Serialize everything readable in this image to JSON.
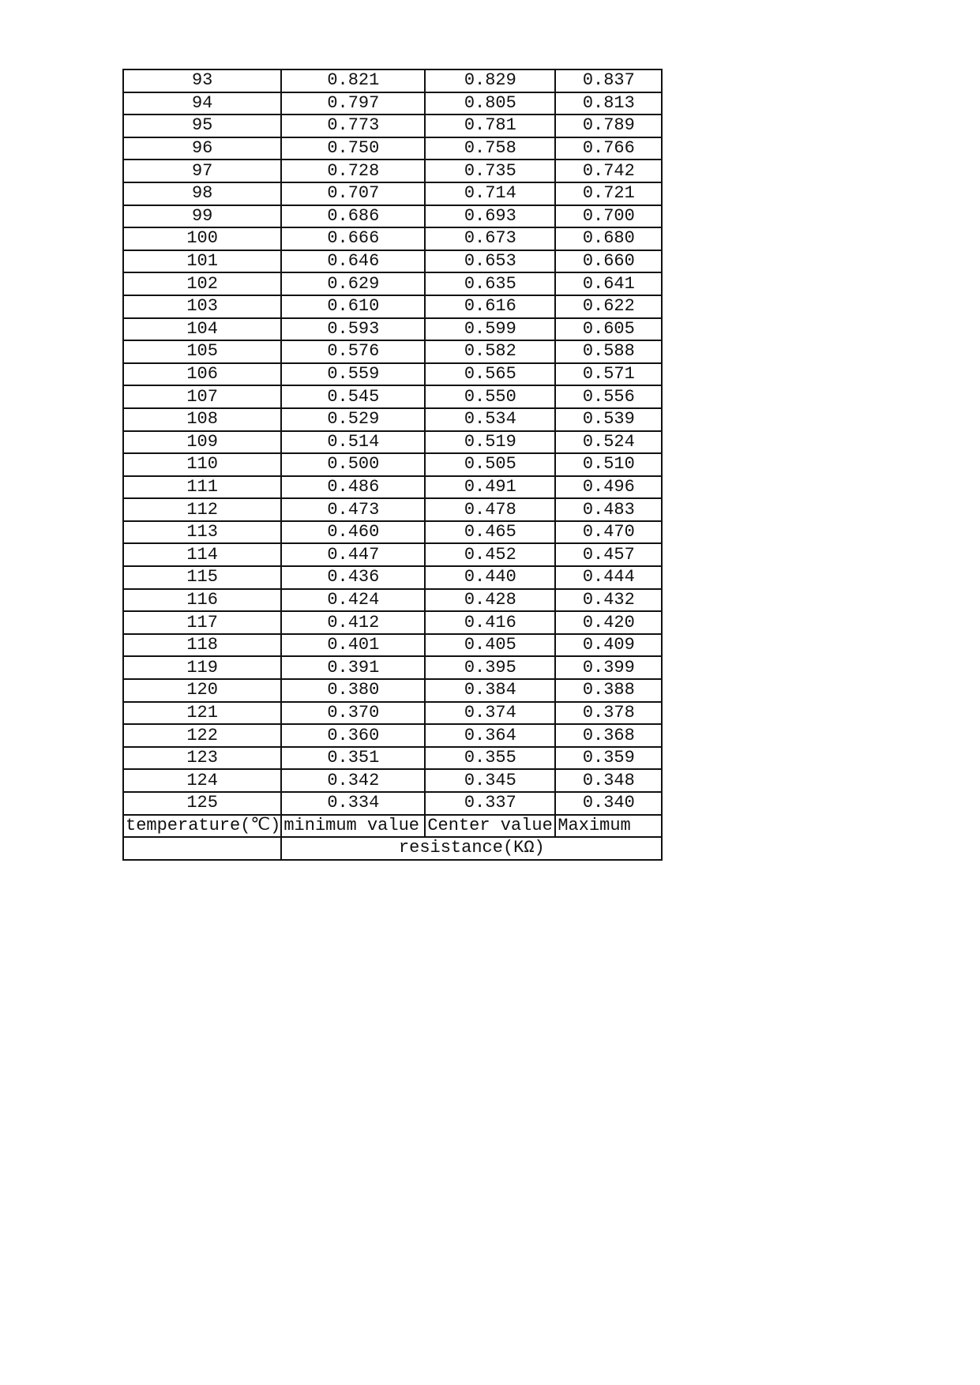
{
  "table": {
    "rows": [
      [
        "93",
        "0.821",
        "0.829",
        "0.837"
      ],
      [
        "94",
        "0.797",
        "0.805",
        "0.813"
      ],
      [
        "95",
        "0.773",
        "0.781",
        "0.789"
      ],
      [
        "96",
        "0.750",
        "0.758",
        "0.766"
      ],
      [
        "97",
        "0.728",
        "0.735",
        "0.742"
      ],
      [
        "98",
        "0.707",
        "0.714",
        "0.721"
      ],
      [
        "99",
        "0.686",
        "0.693",
        "0.700"
      ],
      [
        "100",
        "0.666",
        "0.673",
        "0.680"
      ],
      [
        "101",
        "0.646",
        "0.653",
        "0.660"
      ],
      [
        "102",
        "0.629",
        "0.635",
        "0.641"
      ],
      [
        "103",
        "0.610",
        "0.616",
        "0.622"
      ],
      [
        "104",
        "0.593",
        "0.599",
        "0.605"
      ],
      [
        "105",
        "0.576",
        "0.582",
        "0.588"
      ],
      [
        "106",
        "0.559",
        "0.565",
        "0.571"
      ],
      [
        "107",
        "0.545",
        "0.550",
        "0.556"
      ],
      [
        "108",
        "0.529",
        "0.534",
        "0.539"
      ],
      [
        "109",
        "0.514",
        "0.519",
        "0.524"
      ],
      [
        "110",
        "0.500",
        "0.505",
        "0.510"
      ],
      [
        "111",
        "0.486",
        "0.491",
        "0.496"
      ],
      [
        "112",
        "0.473",
        "0.478",
        "0.483"
      ],
      [
        "113",
        "0.460",
        "0.465",
        "0.470"
      ],
      [
        "114",
        "0.447",
        "0.452",
        "0.457"
      ],
      [
        "115",
        "0.436",
        "0.440",
        "0.444"
      ],
      [
        "116",
        "0.424",
        "0.428",
        "0.432"
      ],
      [
        "117",
        "0.412",
        "0.416",
        "0.420"
      ],
      [
        "118",
        "0.401",
        "0.405",
        "0.409"
      ],
      [
        "119",
        "0.391",
        "0.395",
        "0.399"
      ],
      [
        "120",
        "0.380",
        "0.384",
        "0.388"
      ],
      [
        "121",
        "0.370",
        "0.374",
        "0.378"
      ],
      [
        "122",
        "0.360",
        "0.364",
        "0.368"
      ],
      [
        "123",
        "0.351",
        "0.355",
        "0.359"
      ],
      [
        "124",
        "0.342",
        "0.345",
        "0.348"
      ],
      [
        "125",
        "0.334",
        "0.337",
        "0.340"
      ]
    ],
    "headers": [
      "temperature(℃)",
      "minimum value",
      "Center value",
      "Maximum"
    ],
    "group_header": "resistance(KΩ)"
  }
}
